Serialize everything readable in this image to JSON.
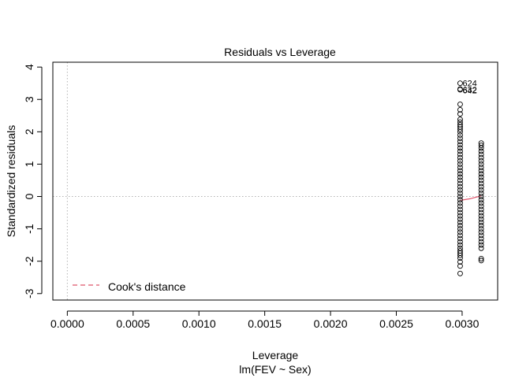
{
  "chart_data": {
    "type": "scatter",
    "title": "Residuals vs Leverage",
    "xlabel": "Leverage",
    "sublabel": "lm(FEV ~ Sex)",
    "ylabel": "Standardized residuals",
    "xlim": [
      -0.00011,
      0.00327
    ],
    "ylim": [
      -3.2,
      4.15
    ],
    "x_ticks": [
      0.0,
      0.0005,
      0.001,
      0.0015,
      0.002,
      0.0025,
      0.003
    ],
    "x_tick_labels": [
      "0.0000",
      "0.0005",
      "0.0010",
      "0.0015",
      "0.0020",
      "0.0025",
      "0.0030"
    ],
    "y_ticks": [
      -3,
      -2,
      -1,
      0,
      1,
      2,
      3,
      4
    ],
    "y_tick_labels": [
      "-3",
      "-2",
      "-1",
      "0",
      "1",
      "2",
      "3",
      "4"
    ],
    "reference_lines": {
      "h": 0,
      "v": 0,
      "style": "dotted",
      "color": "#b3b3b3"
    },
    "series": [
      {
        "x": 0.002985,
        "y": [
          -2.38,
          -2.15,
          -2.02,
          -1.9,
          -1.82,
          -1.75,
          -1.68,
          -1.6,
          -1.5,
          -1.4,
          -1.3,
          -1.2,
          -1.1,
          -1.0,
          -0.9,
          -0.8,
          -0.7,
          -0.6,
          -0.5,
          -0.4,
          -0.3,
          -0.2,
          -0.1,
          0.0,
          0.1,
          0.2,
          0.3,
          0.4,
          0.5,
          0.6,
          0.7,
          0.8,
          0.9,
          1.0,
          1.1,
          1.2,
          1.3,
          1.4,
          1.5,
          1.6,
          1.7,
          1.8,
          1.9,
          2.0,
          2.08,
          2.15,
          2.22,
          2.3,
          2.38,
          2.55,
          2.68,
          2.85,
          3.3,
          3.32,
          3.5
        ],
        "color": "#000000"
      },
      {
        "x": 0.003145,
        "y": [
          -1.98,
          -1.92,
          -1.6,
          -1.5,
          -1.4,
          -1.3,
          -1.2,
          -1.1,
          -1.0,
          -0.9,
          -0.8,
          -0.7,
          -0.6,
          -0.5,
          -0.4,
          -0.3,
          -0.2,
          -0.1,
          0.0,
          0.1,
          0.2,
          0.3,
          0.4,
          0.5,
          0.6,
          0.7,
          0.8,
          0.9,
          1.0,
          1.1,
          1.2,
          1.3,
          1.4,
          1.5,
          1.58,
          1.65
        ],
        "color": "#000000"
      }
    ],
    "point_labels": [
      {
        "text": "624",
        "x": 0.002985,
        "y": 3.5
      },
      {
        "text": "632",
        "x": 0.002985,
        "y": 3.3
      },
      {
        "text": "642",
        "x": 0.002985,
        "y": 3.28
      }
    ],
    "smooth_line": {
      "color": "#df536b",
      "points": [
        [
          0.002985,
          -0.12
        ],
        [
          0.00306,
          -0.07
        ],
        [
          0.003145,
          0.02
        ]
      ]
    },
    "legend": {
      "position": "bottom-left",
      "label": "Cook's distance",
      "line_color": "#df536b",
      "line_style": "dashed"
    }
  }
}
